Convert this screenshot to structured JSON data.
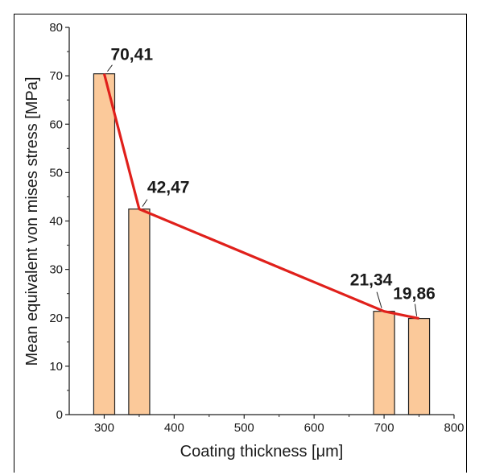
{
  "chart_data": {
    "type": "bar",
    "x": [
      300,
      350,
      700,
      750
    ],
    "values": [
      70.41,
      42.47,
      21.34,
      19.86
    ],
    "data_labels": [
      "70,41",
      "42,47",
      "21,34",
      "19,86"
    ],
    "xlabel": "Coating thickness [μm]",
    "ylabel": "Mean equivalent von mises stress [MPa]",
    "xlim": [
      250,
      800
    ],
    "ylim": [
      0,
      80
    ],
    "xticks": [
      300,
      400,
      500,
      600,
      700,
      800
    ],
    "xtick_labels": [
      "300",
      "400",
      "500",
      "600",
      "700",
      "800"
    ],
    "yticks": [
      0,
      10,
      20,
      30,
      40,
      50,
      60,
      70,
      80
    ],
    "ytick_labels": [
      "0",
      "10",
      "20",
      "30",
      "40",
      "50",
      "60",
      "70",
      "80"
    ],
    "bar_width": 30,
    "line_overlay": true,
    "grid": false,
    "colors": {
      "bar_fill": "#fbc99a",
      "bar_stroke": "#222222",
      "line": "#e0201b",
      "axis": "#222222"
    }
  }
}
